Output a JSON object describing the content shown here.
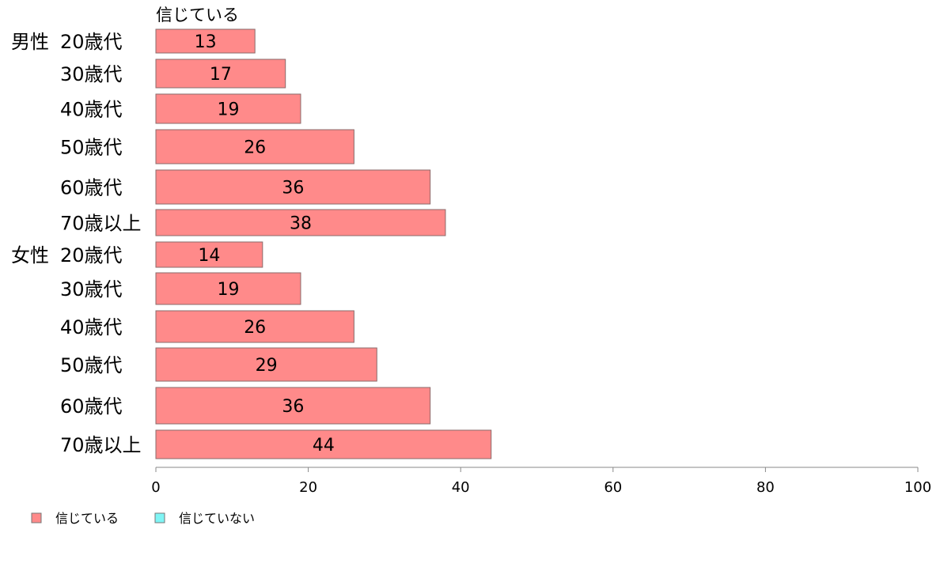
{
  "chart_data": {
    "type": "bar",
    "orientation": "horizontal",
    "series_label_top": "信じている",
    "groups": [
      {
        "label": "男性",
        "categories": [
          "20歳代",
          "30歳代",
          "40歳代",
          "50歳代",
          "60歳代",
          "70歳以上"
        ],
        "values": [
          13,
          17,
          19,
          26,
          36,
          38
        ]
      },
      {
        "label": "女性",
        "categories": [
          "20歳代",
          "30歳代",
          "40歳代",
          "50歳代",
          "60歳代",
          "70歳以上"
        ],
        "values": [
          14,
          19,
          26,
          29,
          36,
          44
        ]
      }
    ],
    "xlim": [
      0,
      100
    ],
    "xticks": [
      0,
      20,
      40,
      60,
      80,
      100
    ],
    "legend": [
      {
        "name": "信じている",
        "color": "#ff8a8a"
      },
      {
        "name": "信じていない",
        "color": "#7ff5f5"
      }
    ],
    "legend_position": "bottom-left",
    "grid": false,
    "bar_color": "#ff8a8a"
  }
}
